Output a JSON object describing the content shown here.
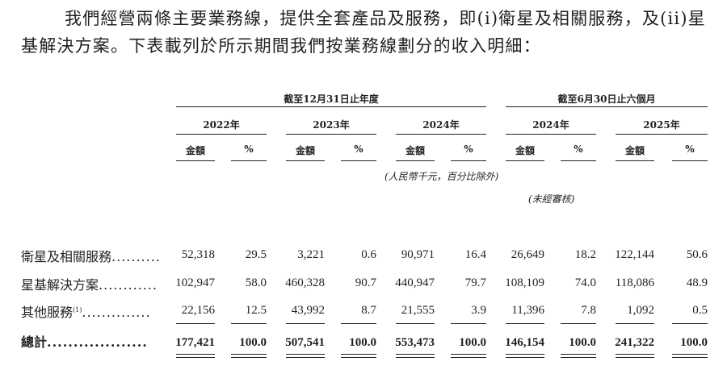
{
  "paragraph": "我們經營兩條主要業務線，提供全套產品及服務，即(i)衛星及相關服務，及(ii)星基解決方案。下表載列於所示期間我們按業務線劃分的收入明細：",
  "table": {
    "group_year": "截至12月31日止年度",
    "group_half": "截至6月30日止六個月",
    "periods": [
      "2022年",
      "2023年",
      "2024年",
      "2024年",
      "2025年"
    ],
    "col_amount": "金額",
    "col_pct": "%",
    "unit_note": "(人民幣千元，百分比除外)",
    "unaudited_note": "(未經審核)",
    "rows": [
      {
        "label": "衛星及相關服務",
        "sup": "",
        "dots": "..........",
        "values": [
          "52,318",
          "29.5",
          "3,221",
          "0.6",
          "90,971",
          "16.4",
          "26,649",
          "18.2",
          "122,144",
          "50.6"
        ]
      },
      {
        "label": "星基解決方案",
        "sup": "",
        "dots": "............",
        "values": [
          "102,947",
          "58.0",
          "460,328",
          "90.7",
          "440,947",
          "79.7",
          "108,109",
          "74.0",
          "118,086",
          "48.9"
        ]
      },
      {
        "label": "其他服務",
        "sup": "(1)",
        "dots": "..............",
        "values": [
          "22,156",
          "12.5",
          "43,992",
          "8.7",
          "21,555",
          "3.9",
          "11,396",
          "7.8",
          "1,092",
          "0.5"
        ]
      }
    ],
    "total": {
      "label": "總計",
      "dots": "...................",
      "values": [
        "177,421",
        "100.0",
        "507,541",
        "100.0",
        "553,473",
        "100.0",
        "146,154",
        "100.0",
        "241,322",
        "100.0"
      ]
    }
  }
}
